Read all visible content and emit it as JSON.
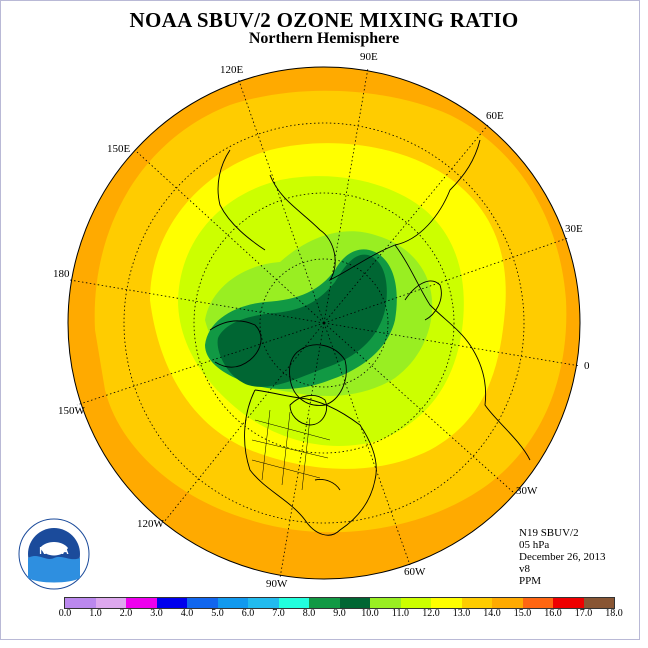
{
  "title": "NOAA SBUV/2 OZONE MIXING RATIO",
  "subtitle": "Northern Hemisphere",
  "longitude_labels": [
    "90E",
    "60E",
    "30E",
    "0",
    "30W",
    "60W",
    "90W",
    "120W",
    "150W",
    "180",
    "150E",
    "120E"
  ],
  "info": {
    "satellite": "N19 SBUV/2",
    "pressure": "05 hPa",
    "date": "December 26, 2013",
    "version": "v8",
    "units": "PPM"
  },
  "colorbar": {
    "ticks": [
      "0.0",
      "1.0",
      "2.0",
      "3.0",
      "4.0",
      "5.0",
      "6.0",
      "7.0",
      "8.0",
      "9.0",
      "10.0",
      "11.0",
      "12.0",
      "13.0",
      "14.0",
      "15.0",
      "16.0",
      "17.0",
      "18.0"
    ],
    "colors": [
      "#bb88ee",
      "#dda8ee",
      "#ee00ee",
      "#0000ee",
      "#1166ee",
      "#1199ee",
      "#22bbee",
      "#22ffdd",
      "#119944",
      "#006633",
      "#99ee22",
      "#ccff00",
      "#ffff00",
      "#ffcc00",
      "#ffaa00",
      "#ff6611",
      "#ee0000",
      "#885533"
    ]
  },
  "logo": {
    "text": "NOAA"
  },
  "chart_data": {
    "type": "heatmap",
    "projection": "polar stereographic (north pole)",
    "variable": "ozone mixing ratio",
    "units": "PPM",
    "level": "05 hPa",
    "levels": [
      0,
      1,
      2,
      3,
      4,
      5,
      6,
      7,
      8,
      9,
      10,
      11,
      12,
      13,
      14,
      15,
      16,
      17,
      18
    ],
    "regions_ppm": {
      "outer_band_mid_latitudes": "14-15",
      "subtropics_ring": "13-14",
      "high_latitudes": "12-13",
      "polar_ring": "11-12",
      "arctic_maximum": "9-10"
    }
  }
}
